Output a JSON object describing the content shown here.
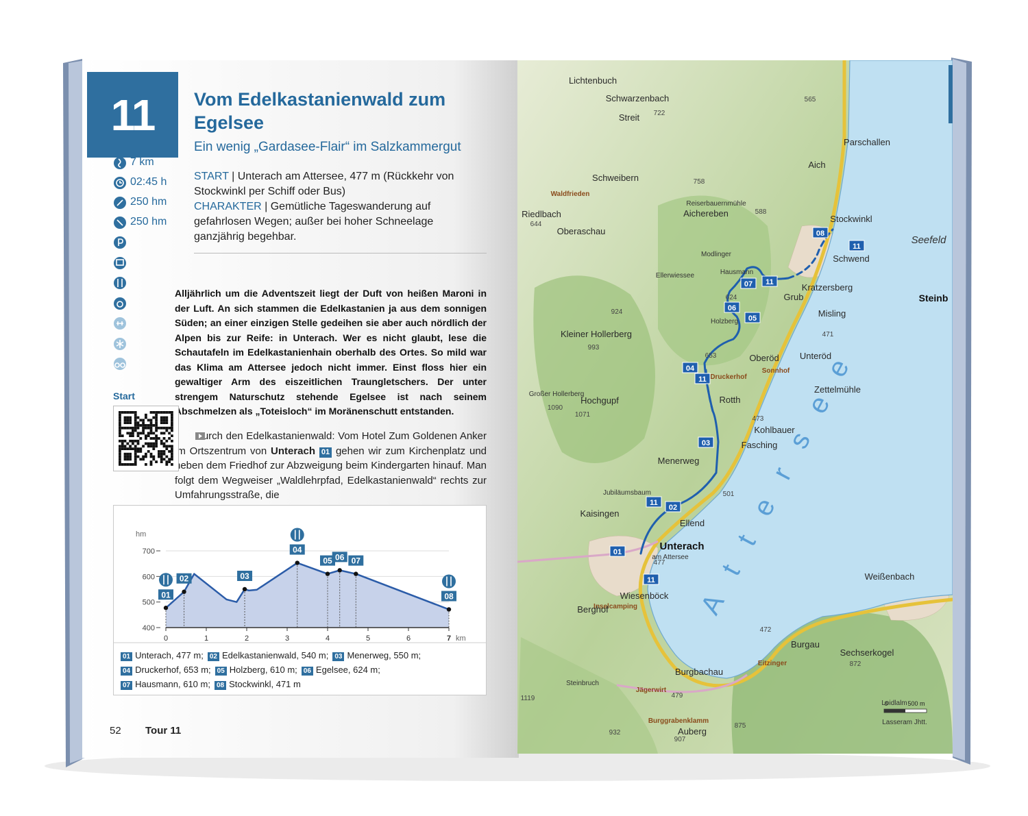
{
  "tour": {
    "number": "11",
    "title": "Vom Edelkastanienwald zum Egelsee",
    "subtitle": "Ein wenig „Gardasee-Flair“ im Salzkammergut",
    "stats": [
      "7 km",
      "02:45 h",
      "250 hm",
      "250 hm"
    ],
    "start": {
      "label": "START",
      "text": "Unterach am Attersee, 477 m (Rückkehr von Stockwinkl per Schiff oder Bus)"
    },
    "character": {
      "label": "CHARAKTER",
      "text": "Gemütliche Tageswanderung auf gefahrlosen Wegen; außer bei hoher Schneelage ganzjährig begehbar."
    },
    "intro": "Alljährlich um die Adventszeit liegt der Duft von heißen Maroni in der Luft. An sich stammen die Edelkastanien ja aus dem sonnigen Süden; an einer einzigen Stelle gedeihen sie aber auch nördlich der Alpen bis zur Reife: in Unterach. Wer es nicht glaubt, lese die Schautafeln im Edelkastanienhain oberhalb des Ortes. So mild war das Klima am Attersee jedoch nicht immer. Einst floss hier ein gewaltiger Arm des eiszeitlichen Traungletschers. Der unter strengem Naturschutz stehende Egelsee ist nach seinem Abschmelzen als „Toteisloch“ im Moränenschutt entstanden.",
    "directions": {
      "lead": "Durch den Edelkastanienwald: Vom Hotel Zum Goldenen Anker im Ortszentrum von",
      "place": "Unterach",
      "marker": "01",
      "rest": "gehen wir zum Kirchenplatz und neben dem Friedhof zur Abzweigung beim Kindergarten hinauf. Man folgt dem Wegweiser „Waldlehrpfad, Edelkastanienwald“ rechts zur Umfahrungsstraße, die"
    },
    "qr_label": "Start"
  },
  "chart_data": {
    "type": "area",
    "x_label": "km",
    "y_label": "hm",
    "x": [
      0,
      0.45,
      0.7,
      1.5,
      1.75,
      1.95,
      2.05,
      2.25,
      3.25,
      4.0,
      4.3,
      4.7,
      7
    ],
    "values": [
      477,
      540,
      610,
      510,
      500,
      550,
      545,
      548,
      653,
      610,
      624,
      610,
      471
    ],
    "color": "#2b5ca8",
    "fill": "#c7d2ea",
    "xlim": [
      0,
      7
    ],
    "xticks": [
      0,
      1,
      2,
      3,
      4,
      5,
      6,
      7
    ],
    "ylim": [
      400,
      700
    ],
    "yticks": [
      400,
      500,
      600,
      700
    ],
    "grid": true,
    "waypoints": [
      {
        "label": "01",
        "x": 0,
        "y": 477,
        "icon": "restaurant"
      },
      {
        "label": "02",
        "x": 0.45,
        "y": 540
      },
      {
        "label": "03",
        "x": 1.95,
        "y": 550
      },
      {
        "label": "04",
        "x": 3.25,
        "y": 653,
        "icon": "restaurant"
      },
      {
        "label": "05",
        "x": 4.0,
        "y": 610
      },
      {
        "label": "06",
        "x": 4.3,
        "y": 624
      },
      {
        "label": "07",
        "x": 4.7,
        "y": 610
      },
      {
        "label": "08",
        "x": 7,
        "y": 471,
        "icon": "restaurant"
      }
    ],
    "legend": [
      {
        "number": "01",
        "text": "Unterach, 477 m;"
      },
      {
        "number": "02",
        "text": "Edelkastanienwald, 540 m;"
      },
      {
        "number": "03",
        "text": "Menerweg, 550 m;"
      },
      {
        "number": "04",
        "text": "Druckerhof, 653 m;"
      },
      {
        "number": "05",
        "text": "Holzberg, 610 m;"
      },
      {
        "number": "06",
        "text": "Egelsee, 624 m;"
      },
      {
        "number": "07",
        "text": "Hausmann, 610 m;"
      },
      {
        "number": "08",
        "text": "Stockwinkl, 471 m"
      }
    ]
  },
  "map": {
    "places": [
      "Lichtenbuch",
      "Schwarzenbach",
      "Streit",
      "Parschallen",
      "Aich",
      "Schweibern",
      "Waldfrieden",
      "Reiserbauernmühle",
      "Aichereben",
      "Riedlbach",
      "Oberaschau",
      "Stockwinkl",
      "Schwend",
      "Modlinger",
      "Hausmann",
      "Ellerwiessee",
      "Kratzersberg",
      "Grub",
      "Holzberg",
      "Misling",
      "Steinb",
      "Kleiner Hollerberg",
      "Oberöd",
      "Unteröd",
      "Druckerhof",
      "Sonnhof",
      "Zettelmühle",
      "Hochgupf",
      "Großer Hollerberg",
      "Rotth",
      "Kohlbauer",
      "Fasching",
      "Menerweg",
      "Jubiläumsbaum",
      "Kaisingen",
      "Ellend",
      "Unterach",
      "am Attersee",
      "Wiesenböck",
      "Inselcamping",
      "Berghof",
      "Weißenbach",
      "Burgau",
      "Sechserkogel",
      "Eitzinger",
      "Burgbachau",
      "Steinbruch",
      "Jägerwirt",
      "Burggrabenklamm",
      "Auberg",
      "Loidlalm",
      "Lasseram Jhtt.",
      "Seefeld"
    ],
    "heights": [
      "722",
      "565",
      "758",
      "644",
      "588",
      "924",
      "993",
      "1090",
      "1071",
      "653",
      "624",
      "473",
      "471",
      "501",
      "477",
      "472",
      "872",
      "875",
      "907",
      "932",
      "1119",
      "479"
    ],
    "lake": "Attersee",
    "route_markers": [
      "01",
      "02",
      "03",
      "04",
      "05",
      "06",
      "07",
      "08",
      "11",
      "11",
      "11",
      "11",
      "11"
    ],
    "scale": [
      "0",
      "500 m"
    ]
  },
  "footer": {
    "page": "52",
    "section": "Tour 11"
  }
}
